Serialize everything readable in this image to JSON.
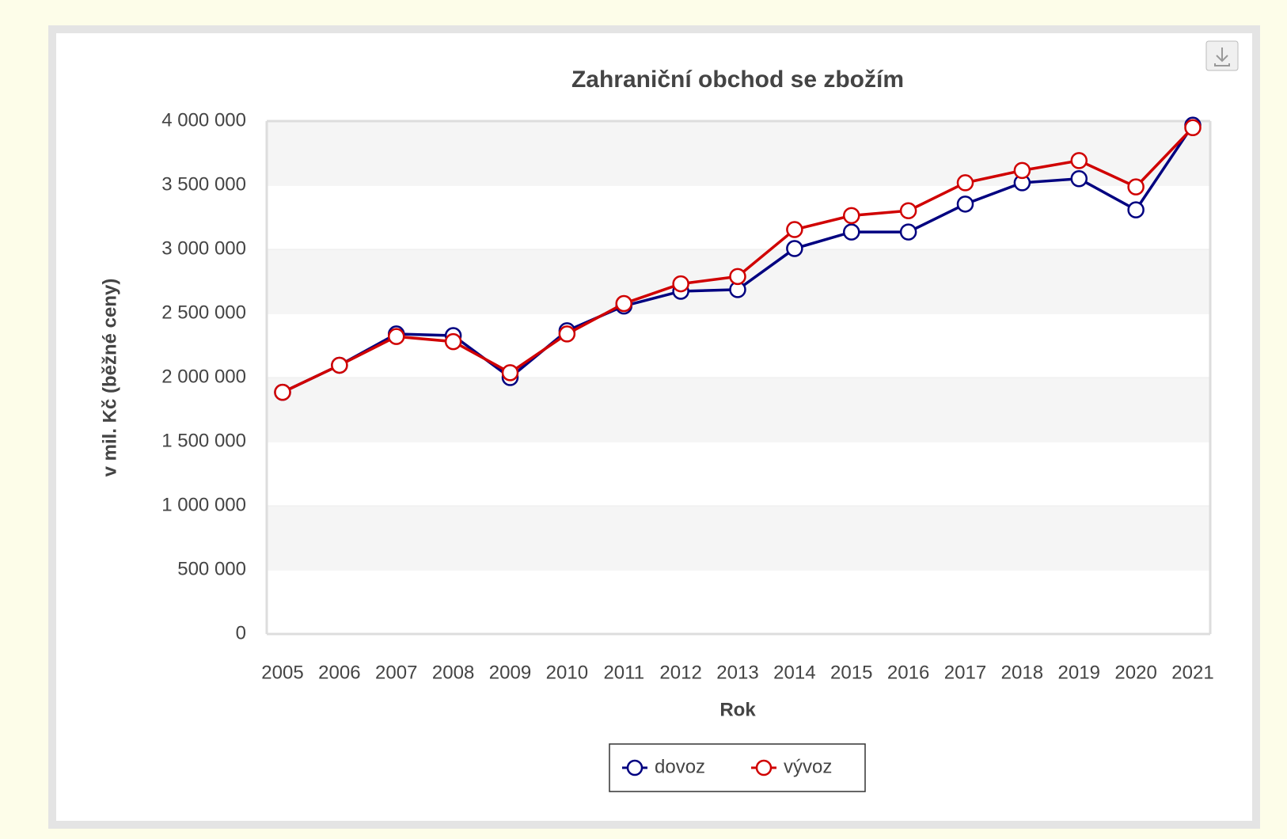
{
  "chart_data": {
    "type": "line",
    "title": "Zahraniční obchod se zbožím",
    "x_label": "Rok",
    "y_label": "v mil. Kč (běžné ceny)",
    "categories": [
      "2005",
      "2006",
      "2007",
      "2008",
      "2009",
      "2010",
      "2011",
      "2012",
      "2013",
      "2014",
      "2015",
      "2016",
      "2017",
      "2018",
      "2019",
      "2020",
      "2021"
    ],
    "series": [
      {
        "name": "dovoz",
        "color": "#000080",
        "values": [
          1885000,
          2096000,
          2340000,
          2327000,
          2000000,
          2365000,
          2558000,
          2673000,
          2686000,
          3006000,
          3135000,
          3135000,
          3353000,
          3519000,
          3551000,
          3308000,
          3968000
        ]
      },
      {
        "name": "vývoz",
        "color": "#d00000",
        "values": [
          1885000,
          2096000,
          2320000,
          2280000,
          2038000,
          2340000,
          2577000,
          2731000,
          2788000,
          3154000,
          3263000,
          3301000,
          3519000,
          3615000,
          3692000,
          3487000,
          3949000
        ]
      }
    ],
    "ylim": [
      0,
      4000000
    ],
    "yticks": [
      0,
      {
        "value": 500000,
        "label": "500 000"
      },
      {
        "value": 1000000,
        "label": "1 000 000"
      },
      {
        "value": 1500000,
        "label": "1 500 000"
      },
      {
        "value": 2000000,
        "label": "2 000 000"
      },
      {
        "value": 2500000,
        "label": "2 500 000"
      },
      {
        "value": 3000000,
        "label": "3 000 000"
      },
      {
        "value": 3500000,
        "label": "3 500 000"
      },
      {
        "value": 4000000,
        "label": "4 000 000"
      }
    ],
    "grid": true,
    "legend": "bottom"
  }
}
